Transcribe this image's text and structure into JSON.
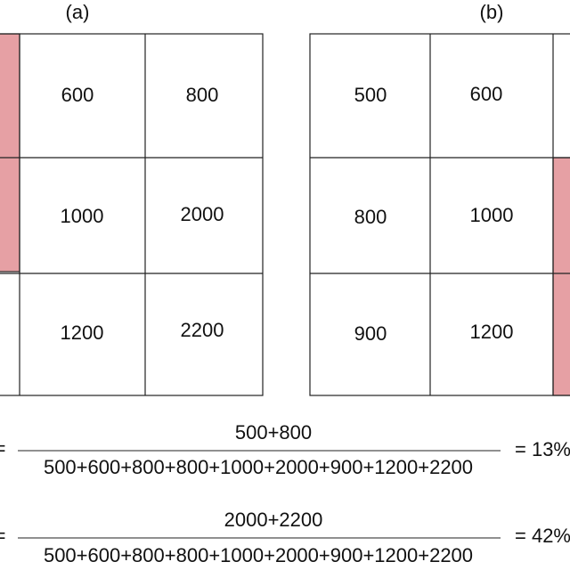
{
  "panels": [
    {
      "label": "(a)",
      "cells": [
        [
          "600",
          "800"
        ],
        [
          "1000",
          "2000"
        ],
        [
          "1200",
          "2200"
        ]
      ]
    },
    {
      "label": "(b)",
      "cells": [
        [
          "500",
          "600"
        ],
        [
          "800",
          "1000"
        ],
        [
          "900",
          "1200"
        ]
      ]
    }
  ],
  "formulas": [
    {
      "lhs": "=",
      "numerator": "500+800",
      "denominator": "500+600+800+800+1000+2000+900+1200+2200",
      "result": "= 13%"
    },
    {
      "lhs": "=",
      "numerator": "2000+2200",
      "denominator": "500+600+800+800+1000+2000+900+1200+2200",
      "result": "= 42%"
    }
  ]
}
